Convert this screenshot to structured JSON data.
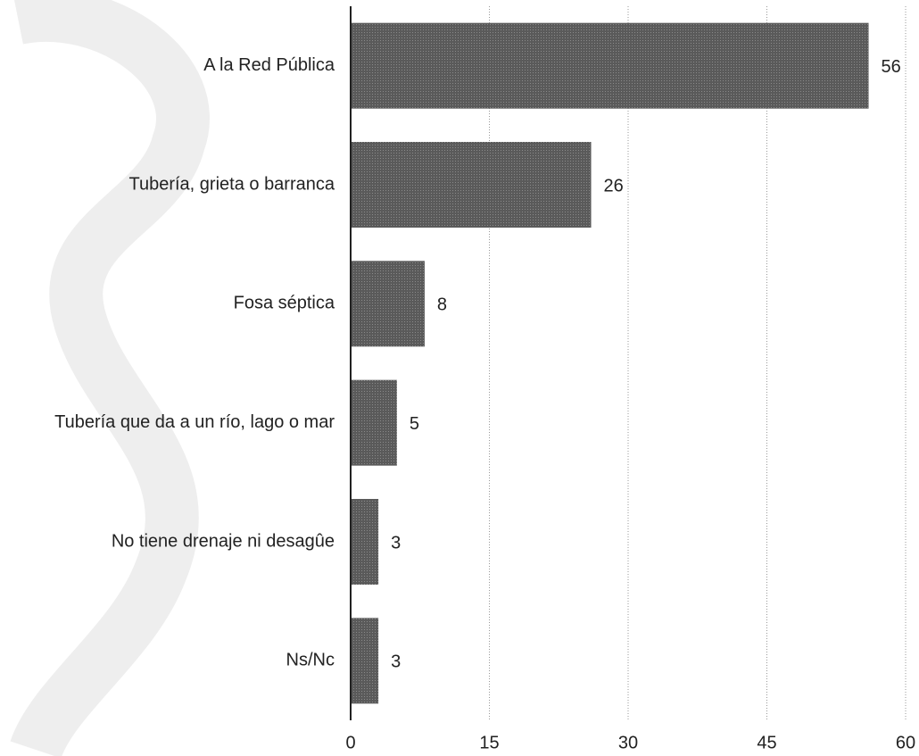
{
  "chart_data": {
    "type": "hbar",
    "categories": [
      "A la Red Pública",
      "Tubería, grieta o barranca",
      "Fosa séptica",
      "Tubería que da a un río, lago o mar",
      "No tiene drenaje ni desagûe",
      "Ns/Nc"
    ],
    "values": [
      56,
      26,
      8,
      5,
      3,
      3
    ],
    "color": "#5a5a5a",
    "xlim": [
      0,
      60
    ],
    "xticks": [
      0,
      15,
      30,
      45,
      60
    ],
    "grid": true
  }
}
